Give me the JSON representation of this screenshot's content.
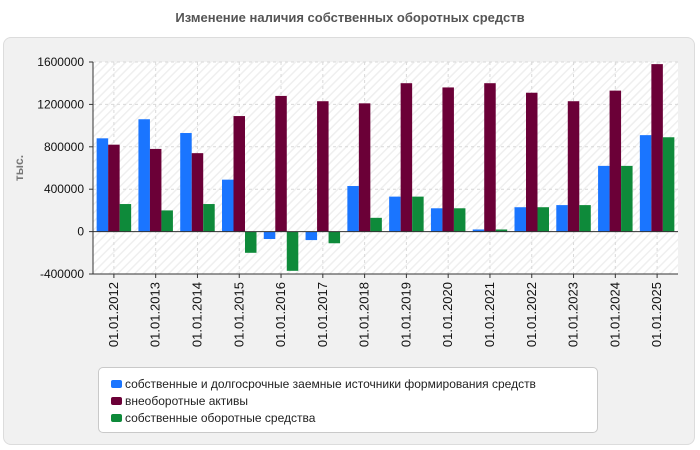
{
  "chart_data": {
    "type": "bar",
    "title": "Изменение наличия собственных оборотных средств",
    "ylabel": "тыс.",
    "xlabel": "",
    "ylim": [
      -400000,
      1600000
    ],
    "yticks": [
      -400000,
      0,
      400000,
      800000,
      1200000,
      1600000
    ],
    "ytick_labels": [
      "-400000",
      "0",
      "400000",
      "800000",
      "1200000",
      "1600000"
    ],
    "grid": true,
    "legend_position": "bottom",
    "categories": [
      "01.01.2012",
      "01.01.2013",
      "01.01.2014",
      "01.01.2015",
      "01.01.2016",
      "01.01.2017",
      "01.01.2018",
      "01.01.2019",
      "01.01.2020",
      "01.01.2021",
      "01.01.2022",
      "01.01.2023",
      "01.01.2024",
      "01.01.2025"
    ],
    "series": [
      {
        "name": "собственные и долгосрочные заемные источники формирования средств",
        "color": "#1a75ff",
        "values": [
          880000,
          1060000,
          930000,
          490000,
          -70000,
          -80000,
          430000,
          330000,
          220000,
          20000,
          230000,
          250000,
          620000,
          910000
        ]
      },
      {
        "name": "внеоборотные активы",
        "color": "#6b0037",
        "values": [
          820000,
          780000,
          740000,
          1090000,
          1280000,
          1230000,
          1210000,
          1400000,
          1360000,
          1400000,
          1310000,
          1230000,
          1330000,
          1580000
        ]
      },
      {
        "name": "собственные оборотные средства",
        "color": "#0e8a3a",
        "values": [
          260000,
          200000,
          260000,
          -200000,
          -370000,
          -110000,
          130000,
          330000,
          220000,
          20000,
          230000,
          250000,
          620000,
          890000
        ]
      }
    ]
  }
}
